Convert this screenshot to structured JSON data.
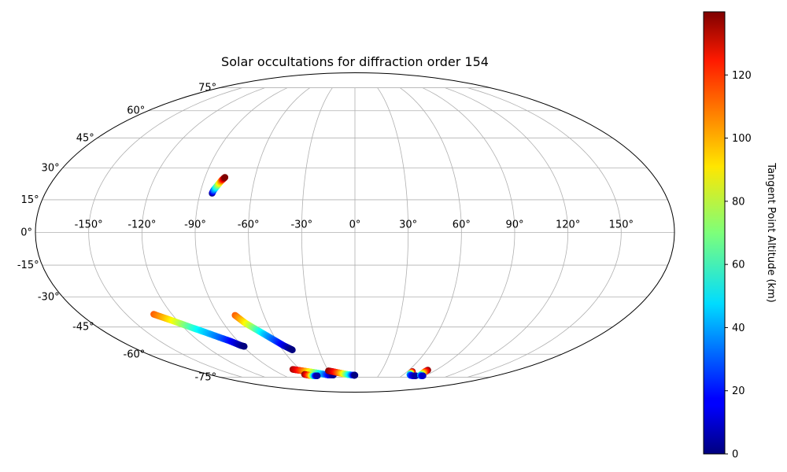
{
  "chart_data": {
    "type": "scatter",
    "projection": "mollweide",
    "title": "Solar occultations for diffraction order 154",
    "grid": true,
    "longitude_ticks": [
      "-150°",
      "-120°",
      "-90°",
      "-60°",
      "-30°",
      "0°",
      "30°",
      "60°",
      "90°",
      "120°",
      "150°"
    ],
    "latitude_ticks": [
      "-75°",
      "-60°",
      "-45°",
      "-30°",
      "-15°",
      "0°",
      "15°",
      "30°",
      "45°",
      "60°",
      "75°"
    ],
    "colorbar": {
      "label": "Tangent Point Altitude (km)",
      "min": 0,
      "max": 140,
      "ticks": [
        "0",
        "20",
        "40",
        "60",
        "80",
        "100",
        "120"
      ],
      "colormap": "jet",
      "placement": "right"
    },
    "series": [
      {
        "points": [
          [
            -83,
            18,
            0
          ],
          [
            -82.5,
            19.5,
            30
          ],
          [
            -81.5,
            21,
            55
          ],
          [
            -80.5,
            22.5,
            80
          ],
          [
            -79.5,
            24,
            105
          ],
          [
            -78.5,
            25,
            130
          ],
          [
            -78,
            25.5,
            140
          ]
        ]
      },
      {
        "points": [
          [
            -132,
            -38.5,
            110
          ],
          [
            -128,
            -40,
            100
          ],
          [
            -124,
            -41.5,
            90
          ],
          [
            -119,
            -43.5,
            75
          ],
          [
            -114,
            -45.5,
            60
          ],
          [
            -110,
            -47,
            50
          ],
          [
            -105,
            -49,
            40
          ],
          [
            -100,
            -51,
            30
          ],
          [
            -96,
            -52.5,
            20
          ],
          [
            -93,
            -54,
            12
          ],
          [
            -91,
            -55,
            5
          ],
          [
            -89,
            -55.5,
            0
          ]
        ]
      },
      {
        "points": [
          [
            -79,
            -39,
            110
          ],
          [
            -77,
            -41,
            100
          ],
          [
            -75,
            -43,
            90
          ],
          [
            -72,
            -45,
            75
          ],
          [
            -69,
            -47,
            60
          ],
          [
            -66,
            -49,
            45
          ],
          [
            -63,
            -51,
            35
          ],
          [
            -60,
            -53,
            25
          ],
          [
            -57,
            -55,
            15
          ],
          [
            -54,
            -56.5,
            5
          ],
          [
            -52,
            -57.5,
            0
          ]
        ]
      },
      {
        "points": [
          [
            -68,
            -69.5,
            135
          ],
          [
            -64,
            -70,
            125
          ],
          [
            -59,
            -70.5,
            110
          ],
          [
            -54,
            -71,
            95
          ],
          [
            -49,
            -71.5,
            80
          ],
          [
            -45,
            -72,
            65
          ],
          [
            -41,
            -72.5,
            50
          ],
          [
            -37,
            -73,
            35
          ],
          [
            -33,
            -73.5,
            20
          ],
          [
            -29,
            -73.5,
            8
          ],
          [
            -27,
            -73.5,
            2
          ]
        ]
      },
      {
        "points": [
          [
            -62,
            -73,
            140
          ],
          [
            -59,
            -73.5,
            120
          ],
          [
            -56,
            -73.8,
            100
          ],
          [
            -53,
            -74,
            60
          ],
          [
            -50,
            -74,
            20
          ],
          [
            -48,
            -74,
            5
          ]
        ]
      },
      {
        "points": [
          [
            -30,
            -70.5,
            140
          ],
          [
            -26,
            -71,
            130
          ],
          [
            -22,
            -71.5,
            118
          ],
          [
            -18,
            -72,
            105
          ],
          [
            -14,
            -72.5,
            90
          ],
          [
            -10,
            -73,
            70
          ],
          [
            -6,
            -73.3,
            50
          ],
          [
            -3,
            -73.5,
            30
          ],
          [
            -1,
            -73.6,
            10
          ],
          [
            0,
            -73.6,
            0
          ]
        ]
      },
      {
        "points": [
          [
            66,
            -71,
            140
          ],
          [
            66.5,
            -72,
            100
          ],
          [
            67.5,
            -73,
            60
          ],
          [
            70,
            -73.7,
            30
          ],
          [
            74,
            -74,
            15
          ],
          [
            78,
            -74,
            5
          ]
        ]
      },
      {
        "points": [
          [
            81,
            -70,
            140
          ],
          [
            80.5,
            -71,
            120
          ],
          [
            81,
            -72.5,
            90
          ],
          [
            82,
            -73.5,
            60
          ],
          [
            84,
            -74,
            35
          ],
          [
            87,
            -74,
            10
          ]
        ]
      }
    ]
  }
}
